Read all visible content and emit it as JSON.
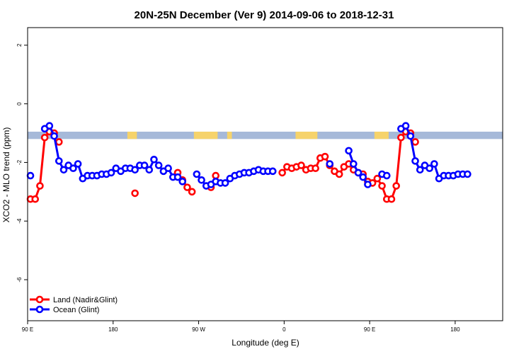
{
  "chart_data": {
    "type": "line",
    "title": "20N-25N December (Ver 9)   2014-09-06 to 2018-12-31",
    "xlabel": "Longitude (deg E)",
    "ylabel": "XCO2 - MLO trend (ppm)",
    "xlim": [
      90,
      590
    ],
    "ylim": [
      -7.4,
      2.6
    ],
    "x_ticks": [
      {
        "value": 90,
        "label": "90 E"
      },
      {
        "value": 180,
        "label": "180"
      },
      {
        "value": 270,
        "label": "90 W"
      },
      {
        "value": 360,
        "label": "0"
      },
      {
        "value": 450,
        "label": "90 E"
      },
      {
        "value": 540,
        "label": "180"
      }
    ],
    "y_ticks": [
      {
        "value": 2,
        "label": "2"
      },
      {
        "value": 0,
        "label": "0"
      },
      {
        "value": -2,
        "label": "-2"
      },
      {
        "value": -4,
        "label": "-4"
      },
      {
        "value": -6,
        "label": "-6"
      }
    ],
    "map_strip": {
      "y_min": -1.2,
      "y_max": -0.95,
      "ocean_color": "#a6b9d9",
      "land_color": "#f6d36b"
    },
    "legend_position": "bottom-left",
    "series": [
      {
        "name": "Land (Nadir&Glint)",
        "color": "#ff0000",
        "segments": [
          [
            [
              93,
              -3.25
            ],
            [
              98,
              -3.25
            ],
            [
              103,
              -2.8
            ],
            [
              108,
              -1.15
            ],
            [
              113,
              -0.95
            ],
            [
              118,
              -1.0
            ]
          ],
          [
            [
              123,
              -1.3
            ]
          ],
          [
            [
              203,
              -3.05
            ]
          ],
          [
            [
              248,
              -2.35
            ],
            [
              253,
              -2.6
            ],
            [
              258,
              -2.85
            ],
            [
              263,
              -3.0
            ]
          ],
          [
            [
              283,
              -2.85
            ],
            [
              288,
              -2.45
            ]
          ],
          [
            [
              358,
              -2.35
            ],
            [
              363,
              -2.15
            ],
            [
              368,
              -2.2
            ],
            [
              373,
              -2.15
            ],
            [
              378,
              -2.1
            ],
            [
              383,
              -2.25
            ],
            [
              388,
              -2.2
            ],
            [
              393,
              -2.2
            ],
            [
              398,
              -1.85
            ],
            [
              403,
              -1.8
            ],
            [
              408,
              -2.1
            ],
            [
              413,
              -2.3
            ],
            [
              418,
              -2.4
            ],
            [
              423,
              -2.15
            ],
            [
              428,
              -2.05
            ],
            [
              433,
              -2.25
            ],
            [
              438,
              -2.35
            ],
            [
              443,
              -2.4
            ],
            [
              448,
              -2.65
            ],
            [
              453,
              -2.7
            ],
            [
              458,
              -2.55
            ],
            [
              463,
              -2.8
            ],
            [
              468,
              -3.25
            ],
            [
              473,
              -3.25
            ],
            [
              478,
              -2.8
            ],
            [
              483,
              -1.15
            ],
            [
              488,
              -0.95
            ],
            [
              493,
              -1.0
            ]
          ],
          [
            [
              498,
              -1.3
            ]
          ]
        ]
      },
      {
        "name": "Ocean (Glint)",
        "color": "#0000ff",
        "segments": [
          [
            [
              93,
              -2.45
            ]
          ],
          [
            [
              108,
              -0.85
            ],
            [
              113,
              -0.75
            ],
            [
              118,
              -1.1
            ],
            [
              123,
              -1.95
            ],
            [
              128,
              -2.25
            ],
            [
              133,
              -2.1
            ],
            [
              138,
              -2.2
            ],
            [
              143,
              -2.05
            ],
            [
              148,
              -2.55
            ],
            [
              153,
              -2.45
            ],
            [
              158,
              -2.45
            ],
            [
              163,
              -2.45
            ],
            [
              168,
              -2.4
            ],
            [
              173,
              -2.4
            ],
            [
              178,
              -2.35
            ],
            [
              183,
              -2.2
            ],
            [
              188,
              -2.3
            ],
            [
              193,
              -2.2
            ],
            [
              198,
              -2.2
            ],
            [
              203,
              -2.25
            ],
            [
              208,
              -2.1
            ],
            [
              213,
              -2.1
            ],
            [
              218,
              -2.25
            ],
            [
              223,
              -1.9
            ],
            [
              228,
              -2.1
            ],
            [
              233,
              -2.3
            ],
            [
              238,
              -2.2
            ],
            [
              243,
              -2.5
            ],
            [
              248,
              -2.5
            ],
            [
              253,
              -2.65
            ]
          ],
          [
            [
              268,
              -2.4
            ],
            [
              273,
              -2.6
            ],
            [
              278,
              -2.8
            ],
            [
              283,
              -2.75
            ],
            [
              288,
              -2.65
            ],
            [
              293,
              -2.7
            ],
            [
              298,
              -2.7
            ],
            [
              303,
              -2.55
            ],
            [
              308,
              -2.45
            ],
            [
              313,
              -2.4
            ],
            [
              318,
              -2.35
            ],
            [
              323,
              -2.35
            ],
            [
              328,
              -2.3
            ],
            [
              333,
              -2.25
            ],
            [
              338,
              -2.3
            ],
            [
              343,
              -2.3
            ],
            [
              348,
              -2.3
            ]
          ],
          [
            [
              408,
              -2.05
            ]
          ],
          [
            [
              428,
              -1.6
            ],
            [
              433,
              -2.05
            ],
            [
              438,
              -2.35
            ],
            [
              443,
              -2.5
            ],
            [
              448,
              -2.75
            ]
          ],
          [
            [
              463,
              -2.4
            ],
            [
              468,
              -2.45
            ]
          ],
          [
            [
              483,
              -0.85
            ],
            [
              488,
              -0.75
            ],
            [
              493,
              -1.1
            ],
            [
              498,
              -1.95
            ],
            [
              503,
              -2.25
            ],
            [
              508,
              -2.1
            ],
            [
              513,
              -2.2
            ],
            [
              518,
              -2.05
            ],
            [
              523,
              -2.55
            ],
            [
              528,
              -2.45
            ],
            [
              533,
              -2.45
            ],
            [
              538,
              -2.45
            ],
            [
              543,
              -2.4
            ],
            [
              548,
              -2.4
            ],
            [
              553,
              -2.4
            ]
          ]
        ]
      }
    ]
  },
  "legend": {
    "land_label": "Land (Nadir&Glint)",
    "ocean_label": "Ocean (Glint)"
  }
}
